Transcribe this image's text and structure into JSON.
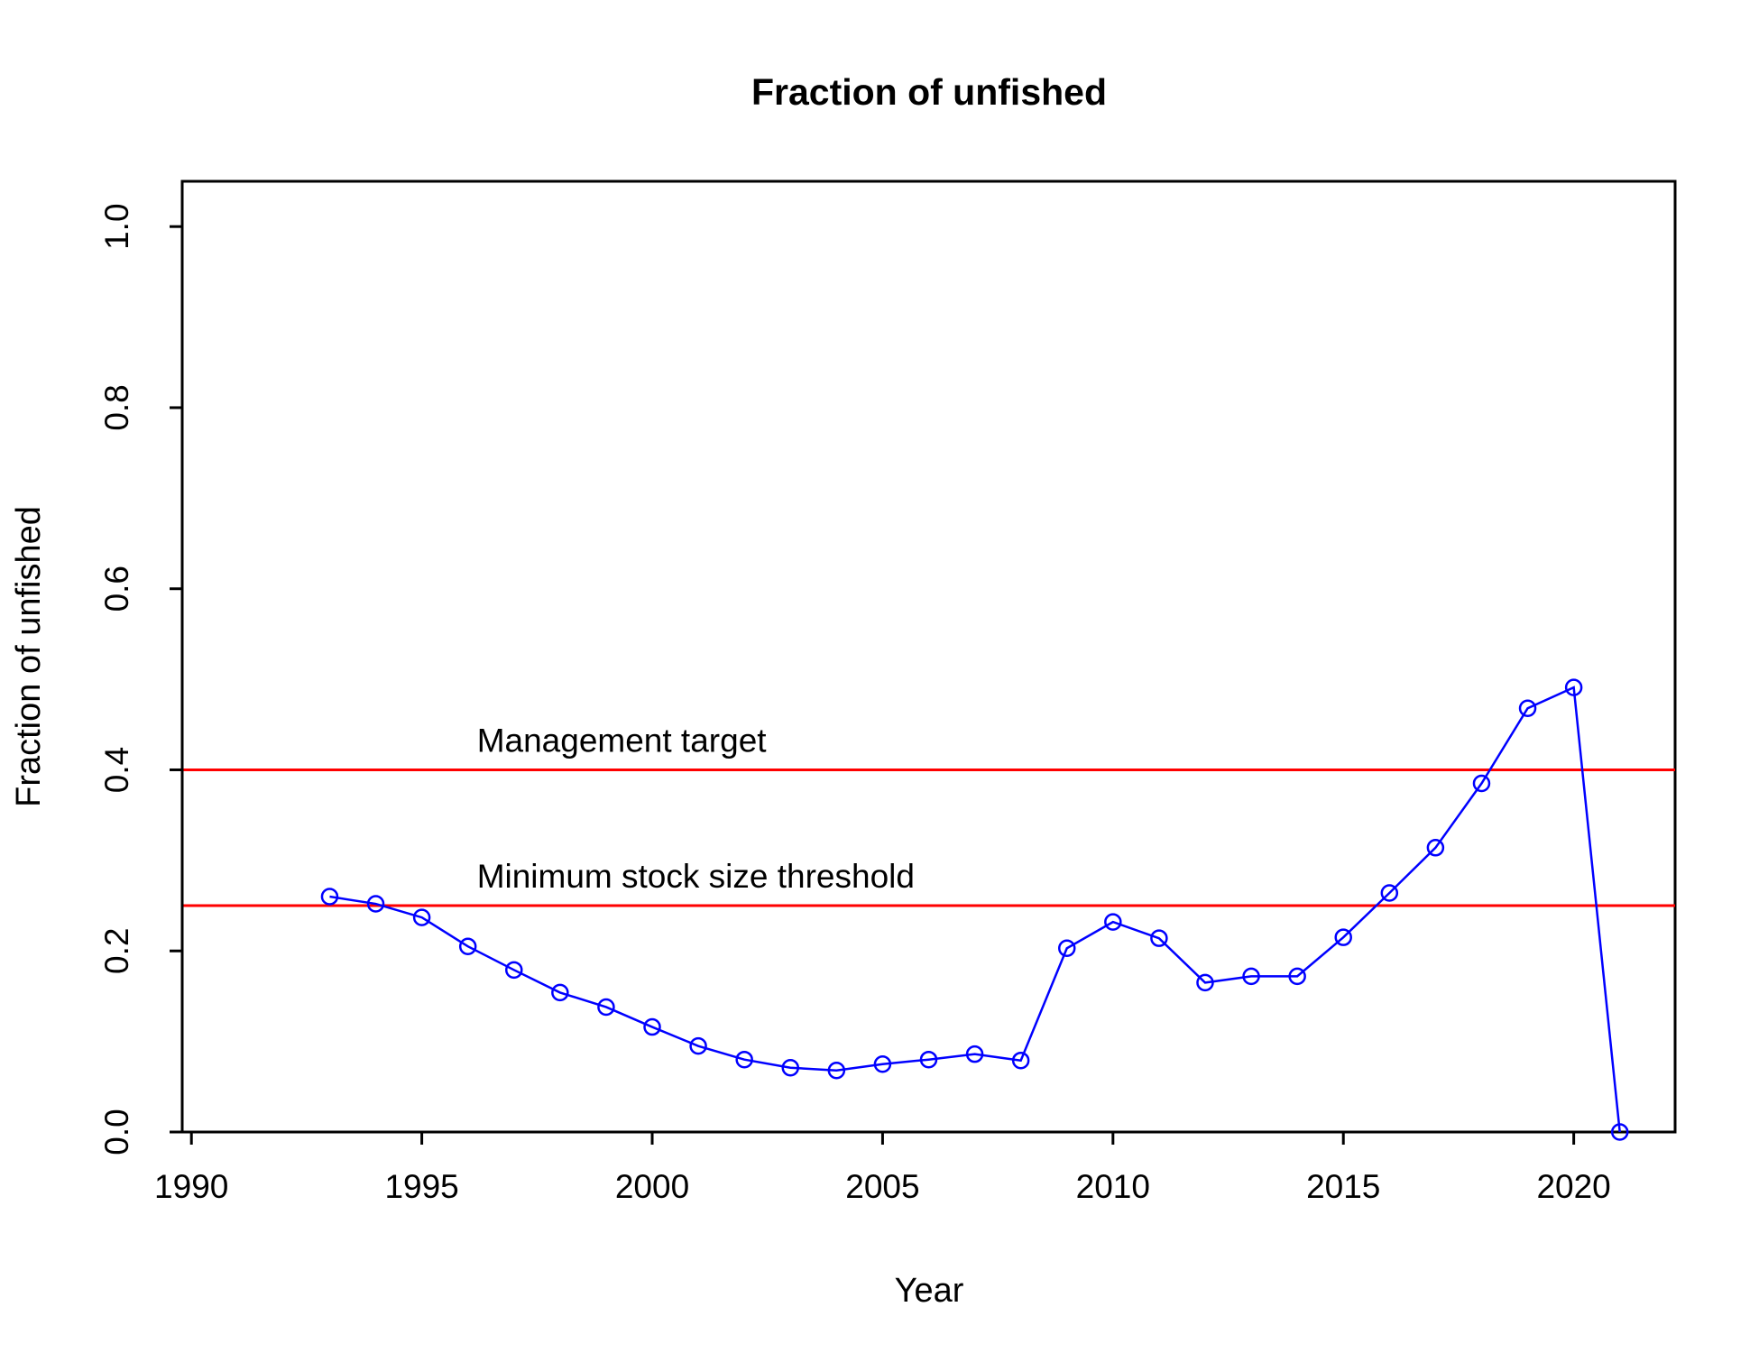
{
  "chart_data": {
    "type": "line",
    "title": "Fraction of unfished",
    "xlabel": "Year",
    "ylabel": "Fraction of unfished",
    "xlim": [
      1989.8,
      2022.2
    ],
    "ylim": [
      0,
      1.05
    ],
    "x_ticks": [
      1990,
      1995,
      2000,
      2005,
      2010,
      2015,
      2020
    ],
    "x_tick_labels": [
      "1990",
      "1995",
      "2000",
      "2005",
      "2010",
      "2015",
      "2020"
    ],
    "y_ticks": [
      0,
      0.2,
      0.4,
      0.6,
      0.8,
      1.0
    ],
    "y_tick_labels": [
      "0.0",
      "0.2",
      "0.4",
      "0.6",
      "0.8",
      "1.0"
    ],
    "grid": false,
    "series": [
      {
        "color": "#0000ff",
        "marker": "open-circle",
        "x": [
          1993,
          1994,
          1995,
          1996,
          1997,
          1998,
          1999,
          2000,
          2001,
          2002,
          2003,
          2004,
          2005,
          2006,
          2007,
          2008,
          2009,
          2010,
          2011,
          2012,
          2013,
          2014,
          2015,
          2016,
          2017,
          2018,
          2019,
          2020,
          2021
        ],
        "y": [
          0.26,
          0.252,
          0.237,
          0.205,
          0.179,
          0.154,
          0.138,
          0.116,
          0.095,
          0.08,
          0.071,
          0.068,
          0.075,
          0.08,
          0.086,
          0.079,
          0.203,
          0.232,
          0.214,
          0.165,
          0.172,
          0.172,
          0.215,
          0.264,
          0.314,
          0.385,
          0.468,
          0.491,
          0.0
        ]
      }
    ],
    "reference_lines": [
      {
        "y": 0.4,
        "label": "Management target",
        "label_x": 1996,
        "color": "#ff0000"
      },
      {
        "y": 0.25,
        "label": "Minimum stock size threshold",
        "label_x": 1996,
        "color": "#ff0000"
      }
    ]
  }
}
